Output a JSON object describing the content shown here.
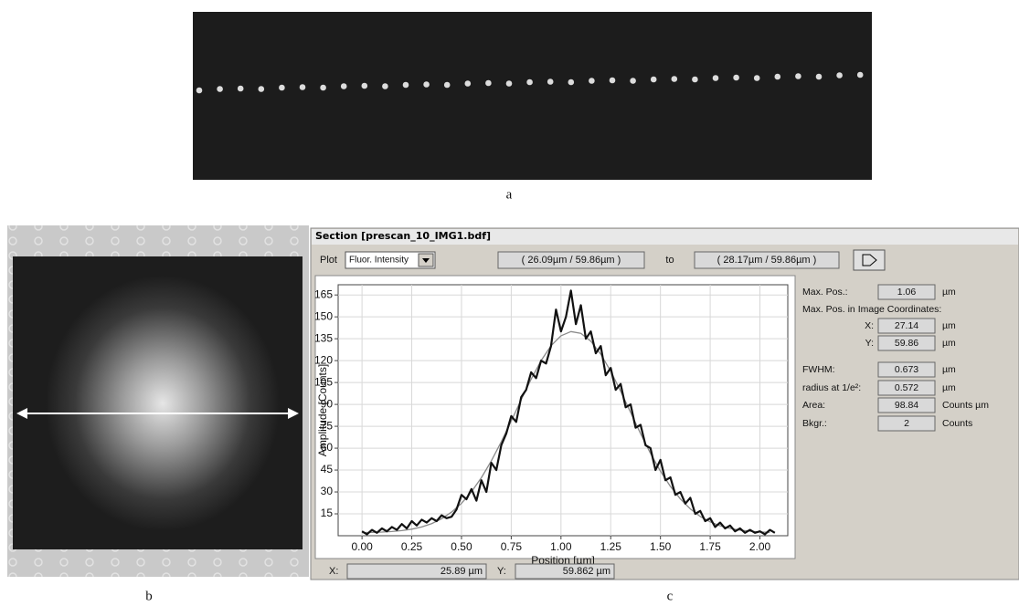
{
  "figure_labels": {
    "a": "a",
    "b": "b",
    "c": "c"
  },
  "window": {
    "title": "Section [prescan_10_IMG1.bdf]",
    "toolbar": {
      "plot_label": "Plot",
      "dropdown": "Fluor. Intensity",
      "from": "( 26.09µm / 59.86µm )",
      "to_label": "to",
      "to": "( 28.17µm / 59.86µm )"
    },
    "results": [
      {
        "label": "Max. Pos.:",
        "value": "1.06",
        "unit": "µm"
      },
      {
        "label": "Max. Pos. in Image Coordinates:"
      },
      {
        "label": "X:",
        "value": "27.14",
        "unit": "µm"
      },
      {
        "label": "Y:",
        "value": "59.86",
        "unit": "µm"
      },
      {
        "label": "FWHM:",
        "value": "0.673",
        "unit": "µm"
      },
      {
        "label": "radius at 1/e²:",
        "value": "0.572",
        "unit": "µm"
      },
      {
        "label": "Area:",
        "value": "98.84",
        "unit": "Counts µm"
      },
      {
        "label": "Bkgr.:",
        "value": "2",
        "unit": "Counts"
      }
    ],
    "status": {
      "x_label": "X:",
      "x_value": "25.89 µm",
      "y_label": "Y:",
      "y_value": "59.862 µm"
    }
  },
  "chart_data": {
    "type": "line",
    "x_label": "Position [µm]",
    "y_label": "Amplitude [Counts]",
    "xlim": [
      -0.12,
      2.14
    ],
    "ylim": [
      0,
      172
    ],
    "xticks": [
      {
        "value": 0,
        "label": "0.00"
      },
      {
        "value": 0.25,
        "label": "0.25"
      },
      {
        "value": 0.5,
        "label": "0.50"
      },
      {
        "value": 0.75,
        "label": "0.75"
      },
      {
        "value": 1,
        "label": "1.00"
      },
      {
        "value": 1.25,
        "label": "1.25"
      },
      {
        "value": 1.5,
        "label": "1.50"
      },
      {
        "value": 1.75,
        "label": "1.75"
      },
      {
        "value": 2,
        "label": "2.00"
      }
    ],
    "yticks": [
      15,
      30,
      45,
      60,
      75,
      90,
      105,
      120,
      135,
      150,
      165
    ],
    "grid": true,
    "series": [
      {
        "color": "#111111",
        "x": [
          0,
          0.025,
          0.05,
          0.075,
          0.1,
          0.125,
          0.15,
          0.175,
          0.2,
          0.225,
          0.25,
          0.275,
          0.3,
          0.325,
          0.35,
          0.375,
          0.4,
          0.425,
          0.45,
          0.475,
          0.5,
          0.525,
          0.55,
          0.575,
          0.6,
          0.625,
          0.65,
          0.675,
          0.7,
          0.725,
          0.75,
          0.775,
          0.8,
          0.825,
          0.85,
          0.875,
          0.9,
          0.925,
          0.95,
          0.975,
          1,
          1.025,
          1.05,
          1.075,
          1.1,
          1.125,
          1.15,
          1.175,
          1.2,
          1.225,
          1.25,
          1.275,
          1.3,
          1.325,
          1.35,
          1.375,
          1.4,
          1.425,
          1.45,
          1.475,
          1.5,
          1.525,
          1.55,
          1.575,
          1.6,
          1.625,
          1.65,
          1.675,
          1.7,
          1.725,
          1.75,
          1.775,
          1.8,
          1.825,
          1.85,
          1.875,
          1.9,
          1.925,
          1.95,
          1.975,
          2,
          2.025,
          2.05,
          2.075
        ],
        "values": [
          3,
          1,
          4,
          2,
          5,
          3,
          6,
          4,
          8,
          5,
          10,
          7,
          11,
          9,
          12,
          10,
          14,
          12,
          13,
          18,
          28,
          25,
          32,
          24,
          38,
          30,
          50,
          45,
          62,
          70,
          82,
          78,
          95,
          100,
          112,
          108,
          120,
          118,
          130,
          155,
          140,
          150,
          168,
          145,
          158,
          135,
          140,
          125,
          130,
          110,
          115,
          100,
          104,
          88,
          90,
          74,
          76,
          62,
          60,
          45,
          52,
          38,
          40,
          28,
          30,
          22,
          26,
          15,
          17,
          10,
          12,
          6,
          9,
          5,
          7,
          3,
          5,
          2,
          4,
          2,
          3,
          1,
          4,
          2
        ]
      },
      {
        "color": "#8a8a8a",
        "x": [
          0,
          0.05,
          0.1,
          0.15,
          0.2,
          0.25,
          0.3,
          0.35,
          0.4,
          0.45,
          0.5,
          0.55,
          0.6,
          0.65,
          0.7,
          0.75,
          0.8,
          0.85,
          0.9,
          0.95,
          1,
          1.05,
          1.1,
          1.15,
          1.2,
          1.25,
          1.3,
          1.35,
          1.4,
          1.45,
          1.5,
          1.55,
          1.6,
          1.65,
          1.7,
          1.75,
          1.8,
          1.85,
          1.9,
          1.95,
          2,
          2.05
        ],
        "values": [
          2.1,
          2.3,
          2.5,
          2.9,
          3.5,
          4.5,
          6.0,
          8.3,
          11.6,
          16.2,
          22.2,
          30.1,
          39.8,
          51.3,
          64.4,
          78.6,
          93.2,
          107.3,
          120.0,
          130.2,
          137.0,
          139.9,
          138.7,
          133.3,
          124.4,
          112.7,
          99.0,
          84.5,
          70.0,
          56.4,
          44.2,
          33.8,
          25.2,
          18.4,
          13.2,
          9.5,
          6.8,
          5.0,
          3.8,
          3.1,
          2.6,
          2.3
        ]
      }
    ]
  }
}
